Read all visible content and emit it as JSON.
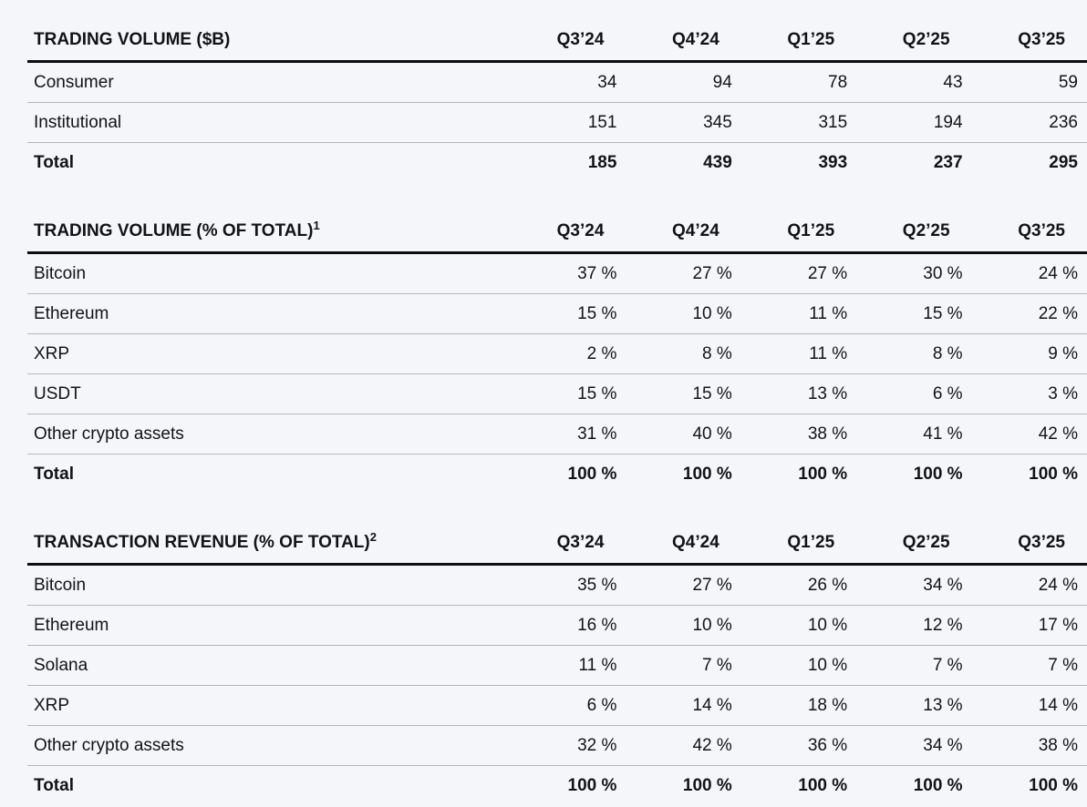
{
  "page": {
    "background": "#f5f6f9",
    "text_color": "#121316",
    "heavy_rule_color": "#0c0d10",
    "light_rule_color": "#b3b6bb"
  },
  "tables": [
    {
      "title": "TRADING VOLUME ($B)",
      "footnote_mark": "",
      "columns": [
        "Q3’24",
        "Q4’24",
        "Q1’25",
        "Q2’25",
        "Q3’25"
      ],
      "rows": [
        {
          "label": "Consumer",
          "values": [
            "34",
            "94",
            "78",
            "43",
            "59"
          ],
          "bold": false
        },
        {
          "label": "Institutional",
          "values": [
            "151",
            "345",
            "315",
            "194",
            "236"
          ],
          "bold": false
        },
        {
          "label": "Total",
          "values": [
            "185",
            "439",
            "393",
            "237",
            "295"
          ],
          "bold": true
        }
      ]
    },
    {
      "title": "TRADING VOLUME (% OF TOTAL)",
      "footnote_mark": "1",
      "columns": [
        "Q3’24",
        "Q4’24",
        "Q1’25",
        "Q2’25",
        "Q3’25"
      ],
      "rows": [
        {
          "label": "Bitcoin",
          "values": [
            "37 %",
            "27 %",
            "27 %",
            "30 %",
            "24 %"
          ],
          "bold": false
        },
        {
          "label": "Ethereum",
          "values": [
            "15 %",
            "10 %",
            "11 %",
            "15 %",
            "22 %"
          ],
          "bold": false
        },
        {
          "label": "XRP",
          "values": [
            "2 %",
            "8 %",
            "11 %",
            "8 %",
            "9 %"
          ],
          "bold": false
        },
        {
          "label": "USDT",
          "values": [
            "15 %",
            "15 %",
            "13 %",
            "6 %",
            "3 %"
          ],
          "bold": false
        },
        {
          "label": "Other crypto assets",
          "values": [
            "31 %",
            "40 %",
            "38 %",
            "41 %",
            "42 %"
          ],
          "bold": false
        },
        {
          "label": "Total",
          "values": [
            "100 %",
            "100 %",
            "100 %",
            "100 %",
            "100 %"
          ],
          "bold": true
        }
      ]
    },
    {
      "title": "TRANSACTION REVENUE (% OF TOTAL)",
      "footnote_mark": "2",
      "columns": [
        "Q3’24",
        "Q4’24",
        "Q1’25",
        "Q2’25",
        "Q3’25"
      ],
      "rows": [
        {
          "label": "Bitcoin",
          "values": [
            "35 %",
            "27 %",
            "26 %",
            "34 %",
            "24 %"
          ],
          "bold": false
        },
        {
          "label": "Ethereum",
          "values": [
            "16 %",
            "10 %",
            "10 %",
            "12 %",
            "17 %"
          ],
          "bold": false
        },
        {
          "label": "Solana",
          "values": [
            "11 %",
            "7 %",
            "10 %",
            "7 %",
            "7 %"
          ],
          "bold": false
        },
        {
          "label": "XRP",
          "values": [
            "6 %",
            "14 %",
            "18 %",
            "13 %",
            "14 %"
          ],
          "bold": false
        },
        {
          "label": "Other crypto assets",
          "values": [
            "32 %",
            "42 %",
            "36 %",
            "34 %",
            "38 %"
          ],
          "bold": false
        },
        {
          "label": "Total",
          "values": [
            "100 %",
            "100 %",
            "100 %",
            "100 %",
            "100 %"
          ],
          "bold": true
        }
      ]
    }
  ]
}
